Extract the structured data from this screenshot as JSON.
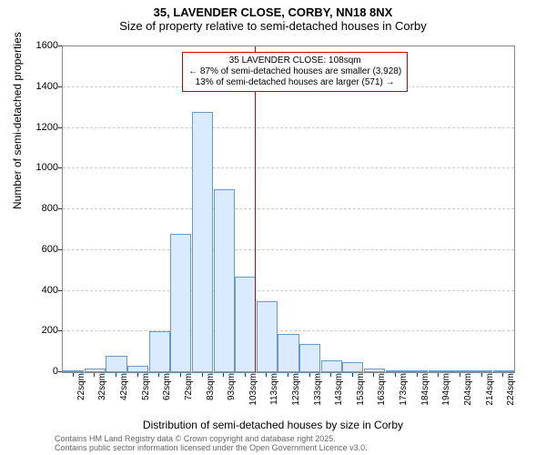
{
  "chart": {
    "type": "histogram",
    "title_line1": "35, LAVENDER CLOSE, CORBY, NN18 8NX",
    "title_line2": "Size of property relative to semi-detached houses in Corby",
    "title_fontsize": 13,
    "y_axis_label": "Number of semi-detached properties",
    "x_axis_label": "Distribution of semi-detached houses by size in Corby",
    "axis_label_fontsize": 12,
    "tick_fontsize": 11,
    "background_color": "#ffffff",
    "grid_color": "#cccccc",
    "bar_fill": "#daeaff",
    "bar_border": "#6699cc",
    "ylim": [
      0,
      1600
    ],
    "ytick_step": 200,
    "yticks": [
      0,
      200,
      400,
      600,
      800,
      1000,
      1200,
      1400,
      1600
    ],
    "xtick_labels": [
      "22sqm",
      "32sqm",
      "42sqm",
      "52sqm",
      "62sqm",
      "72sqm",
      "83sqm",
      "93sqm",
      "103sqm",
      "113sqm",
      "123sqm",
      "133sqm",
      "143sqm",
      "153sqm",
      "163sqm",
      "173sqm",
      "184sqm",
      "194sqm",
      "204sqm",
      "214sqm",
      "224sqm"
    ],
    "bar_values": [
      0,
      20,
      80,
      30,
      200,
      680,
      1280,
      900,
      470,
      350,
      190,
      140,
      60,
      50,
      20,
      10,
      5,
      2,
      0,
      0,
      0
    ],
    "reference_value_sqm": 108,
    "reference_line_color": "#cc0000",
    "annotation": {
      "line1": "35 LAVENDER CLOSE: 108sqm",
      "line2": "← 87% of semi-detached houses are smaller (3,928)",
      "line3": "13% of semi-detached houses are larger (571) →",
      "border_color": "#cc0000",
      "fontsize": 10
    },
    "footer_line1": "Contains HM Land Registry data © Crown copyright and database right 2025.",
    "footer_line2": "Contains public sector information licensed under the Open Government Licence v3.0.",
    "footer_color": "#666666",
    "footer_fontsize": 9
  }
}
